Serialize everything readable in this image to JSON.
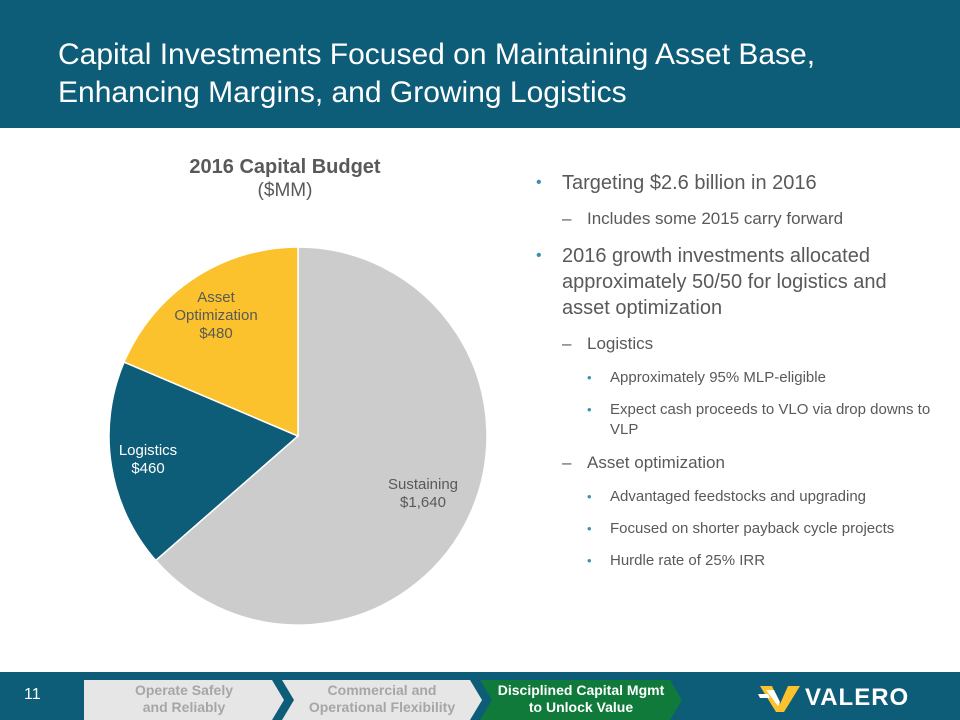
{
  "header": {
    "title_line1": "Capital Investments Focused on Maintaining Asset Base,",
    "title_line2": "Enhancing Margins, and Growing Logistics"
  },
  "chart_data": {
    "type": "pie",
    "title": "2016 Capital Budget",
    "subtitle": "($MM)",
    "slices": [
      {
        "label": "Sustaining",
        "value": 1640,
        "value_label": "$1,640",
        "color": "#cccccc"
      },
      {
        "label": "Logistics",
        "value": 460,
        "value_label": "$460",
        "color": "#0d5c78"
      },
      {
        "label": "Asset Optimization",
        "value": 480,
        "value_label": "$480",
        "color": "#fcc22d"
      }
    ],
    "start_angle_deg": 0,
    "direction": "clockwise"
  },
  "bullets": {
    "b1": "Targeting $2.6 billion in 2016",
    "b1_sub": "Includes some 2015 carry forward",
    "b2": "2016 growth investments allocated approximately 50/50 for logistics and asset optimization",
    "logistics": "Logistics",
    "logistics_items": [
      "Approximately 95% MLP-eligible",
      "Expect cash proceeds to VLO via drop downs to VLP"
    ],
    "asset": "Asset optimization",
    "asset_items": [
      "Advantaged feedstocks and upgrading",
      "Focused on shorter payback cycle projects",
      "Hurdle rate of 25% IRR"
    ]
  },
  "footer": {
    "page_number": "11",
    "tab1": "Operate Safely and Reliably",
    "tab2": "Commercial and Operational Flexibility",
    "tab3": "Disciplined Capital Mgmt to Unlock Value",
    "logo_text": "VALERO"
  },
  "colors": {
    "header_bg": "#0d5c78",
    "sustaining": "#cccccc",
    "logistics": "#0d5c78",
    "asset": "#fcc22d",
    "active_tab": "#0f7a3a",
    "inactive_tab": "#e6e6e6"
  }
}
